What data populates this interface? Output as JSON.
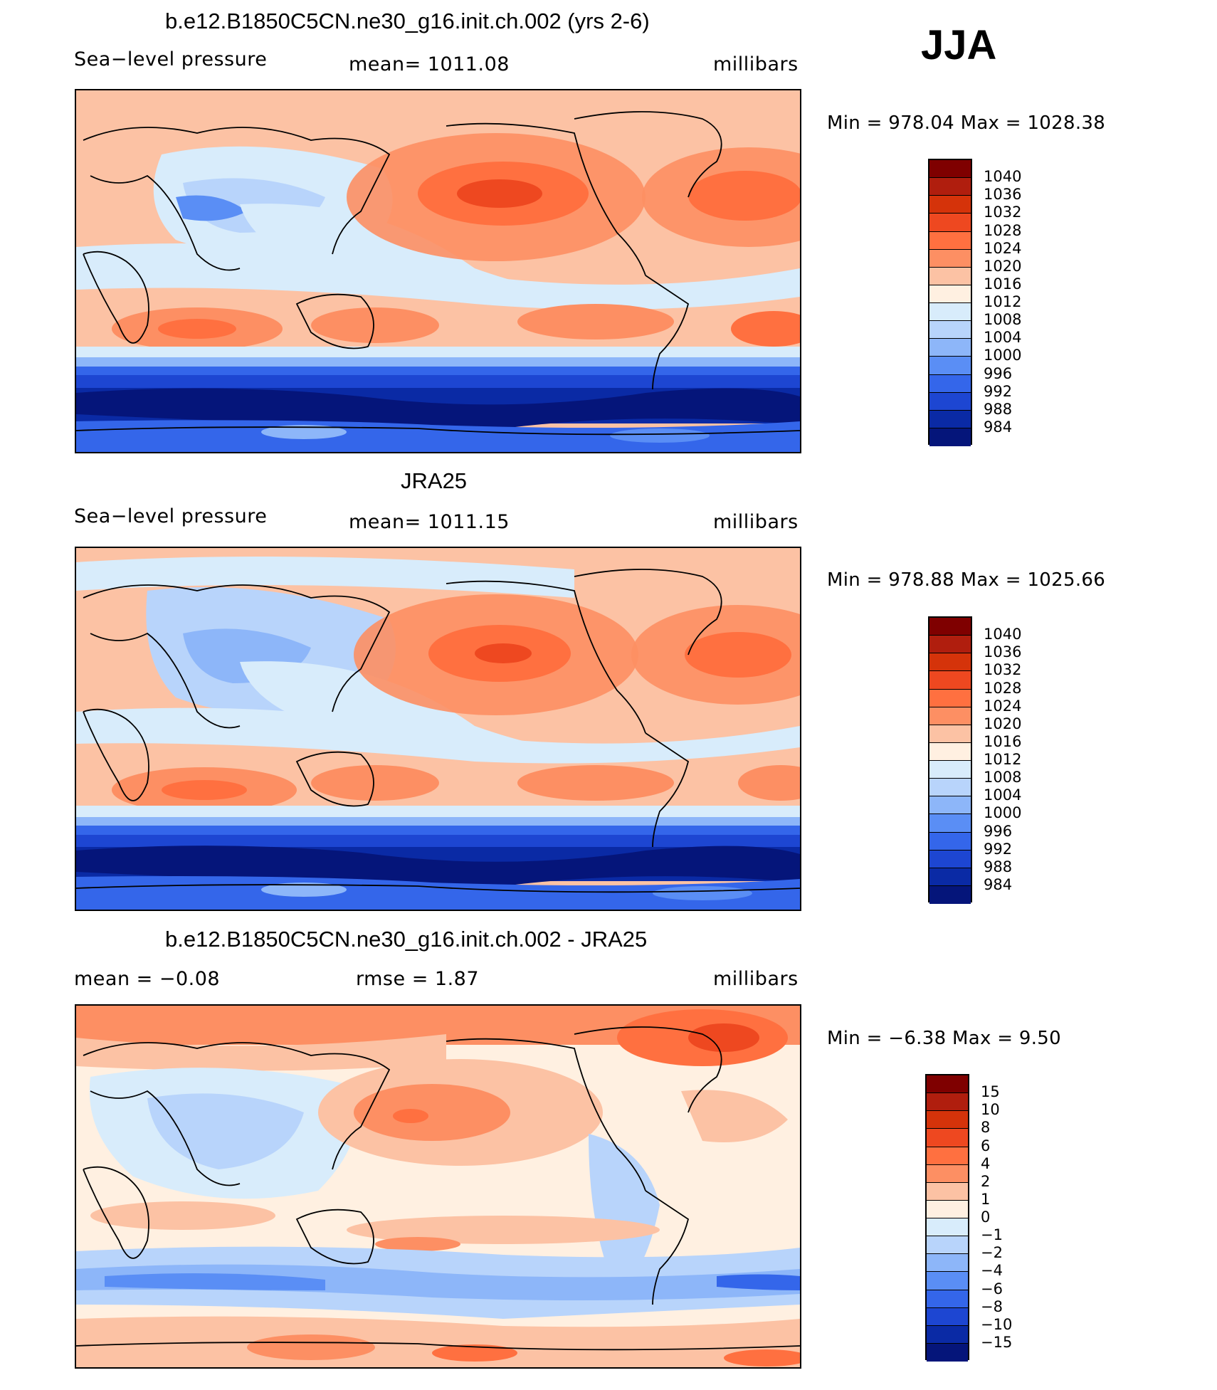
{
  "season": "JJA",
  "panels": [
    {
      "title": "b.e12.B1850C5CN.ne30_g16.init.ch.002 (yrs 2-6)",
      "left_label": "Sea−level pressure",
      "center_label": "mean=  1011.08",
      "right_label": "millibars",
      "minmax": "Min  =  978.04  Max  =  1028.38",
      "map_icon": "world-map-slp-model"
    },
    {
      "title": "JRA25",
      "left_label": "Sea−level pressure",
      "center_label": "mean=  1011.15",
      "right_label": "millibars",
      "minmax": "Min  =  978.88  Max  =  1025.66",
      "map_icon": "world-map-slp-obs"
    },
    {
      "title": "b.e12.B1850C5CN.ne30_g16.init.ch.002 - JRA25",
      "left_label": "mean  =    −0.08",
      "center_label": "rmse  =     1.87",
      "right_label": "millibars",
      "minmax": "Min  =    −6.38  Max  =     9.50",
      "map_icon": "world-map-slp-difference"
    }
  ],
  "colorbars": [
    {
      "labels": [
        "1040",
        "1036",
        "1032",
        "1028",
        "1024",
        "1020",
        "1016",
        "1012",
        "1008",
        "1004",
        "1000",
        "996",
        "992",
        "988",
        "984"
      ],
      "colors": [
        "#7f0000",
        "#b01e0e",
        "#d5330a",
        "#ee4820",
        "#ff7040",
        "#fd8f63",
        "#fcc2a4",
        "#fff0e1",
        "#d8ecfb",
        "#b8d4fb",
        "#8db6f9",
        "#5a8ef5",
        "#3466ea",
        "#1d46d2",
        "#0a2aa5",
        "#05157a"
      ]
    },
    {
      "labels": [
        "1040",
        "1036",
        "1032",
        "1028",
        "1024",
        "1020",
        "1016",
        "1012",
        "1008",
        "1004",
        "1000",
        "996",
        "992",
        "988",
        "984"
      ],
      "colors": [
        "#7f0000",
        "#b01e0e",
        "#d5330a",
        "#ee4820",
        "#ff7040",
        "#fd8f63",
        "#fcc2a4",
        "#fff0e1",
        "#d8ecfb",
        "#b8d4fb",
        "#8db6f9",
        "#5a8ef5",
        "#3466ea",
        "#1d46d2",
        "#0a2aa5",
        "#05157a"
      ]
    },
    {
      "labels": [
        "15",
        "10",
        "8",
        "6",
        "4",
        "2",
        "1",
        "0",
        "−1",
        "−2",
        "−4",
        "−6",
        "−8",
        "−10",
        "−15"
      ],
      "colors": [
        "#7f0000",
        "#b01e0e",
        "#d5330a",
        "#ee4820",
        "#ff7040",
        "#fd8f63",
        "#fcc2a4",
        "#fff0e1",
        "#d8ecfb",
        "#b8d4fb",
        "#8db6f9",
        "#5a8ef5",
        "#3466ea",
        "#1d46d2",
        "#0a2aa5",
        "#05157a"
      ]
    }
  ]
}
